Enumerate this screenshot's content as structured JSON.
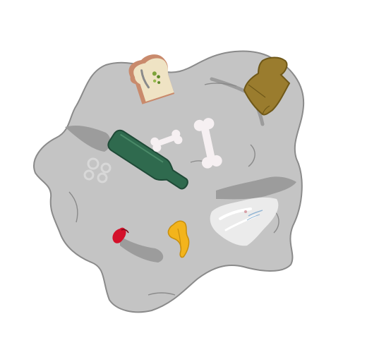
{
  "colors": {
    "background": "#ffffff",
    "rock_fill": "#c4c4c4",
    "rock_stroke": "#8a8a8a",
    "shadow": "#9c9c9c",
    "bottle_green": "#2f6a4e",
    "bottle_dark": "#1f4a37",
    "jug_olive": "#9a7c2e",
    "jug_dark": "#6f5818",
    "toast_crust": "#c98a6c",
    "toast_bread": "#efe3c4",
    "bone": "#f6f0f2",
    "banana": "#f3b41c",
    "apple_red": "#d4102a",
    "bag_white": "#eeeeee",
    "bag_print": "#8fb4d4"
  },
  "objects": {
    "rock": {
      "name": "rock-pile",
      "icon": "rock-icon"
    },
    "toast": {
      "name": "toast-with-mold",
      "icon": "toast-icon"
    },
    "jug": {
      "name": "plastic-jug",
      "icon": "jug-icon"
    },
    "bottle": {
      "name": "glass-bottle",
      "icon": "bottle-icon"
    },
    "bone_small": {
      "name": "bone-small",
      "icon": "bone-icon"
    },
    "bone_large": {
      "name": "bone-large",
      "icon": "bone-icon"
    },
    "bubbles": {
      "name": "bubble-cluster",
      "icon": "bubbles-icon"
    },
    "bag": {
      "name": "plastic-bag",
      "icon": "bag-icon"
    },
    "apple_core": {
      "name": "apple-core",
      "icon": "apple-icon"
    },
    "banana_peel": {
      "name": "banana-peel",
      "icon": "banana-icon"
    }
  }
}
